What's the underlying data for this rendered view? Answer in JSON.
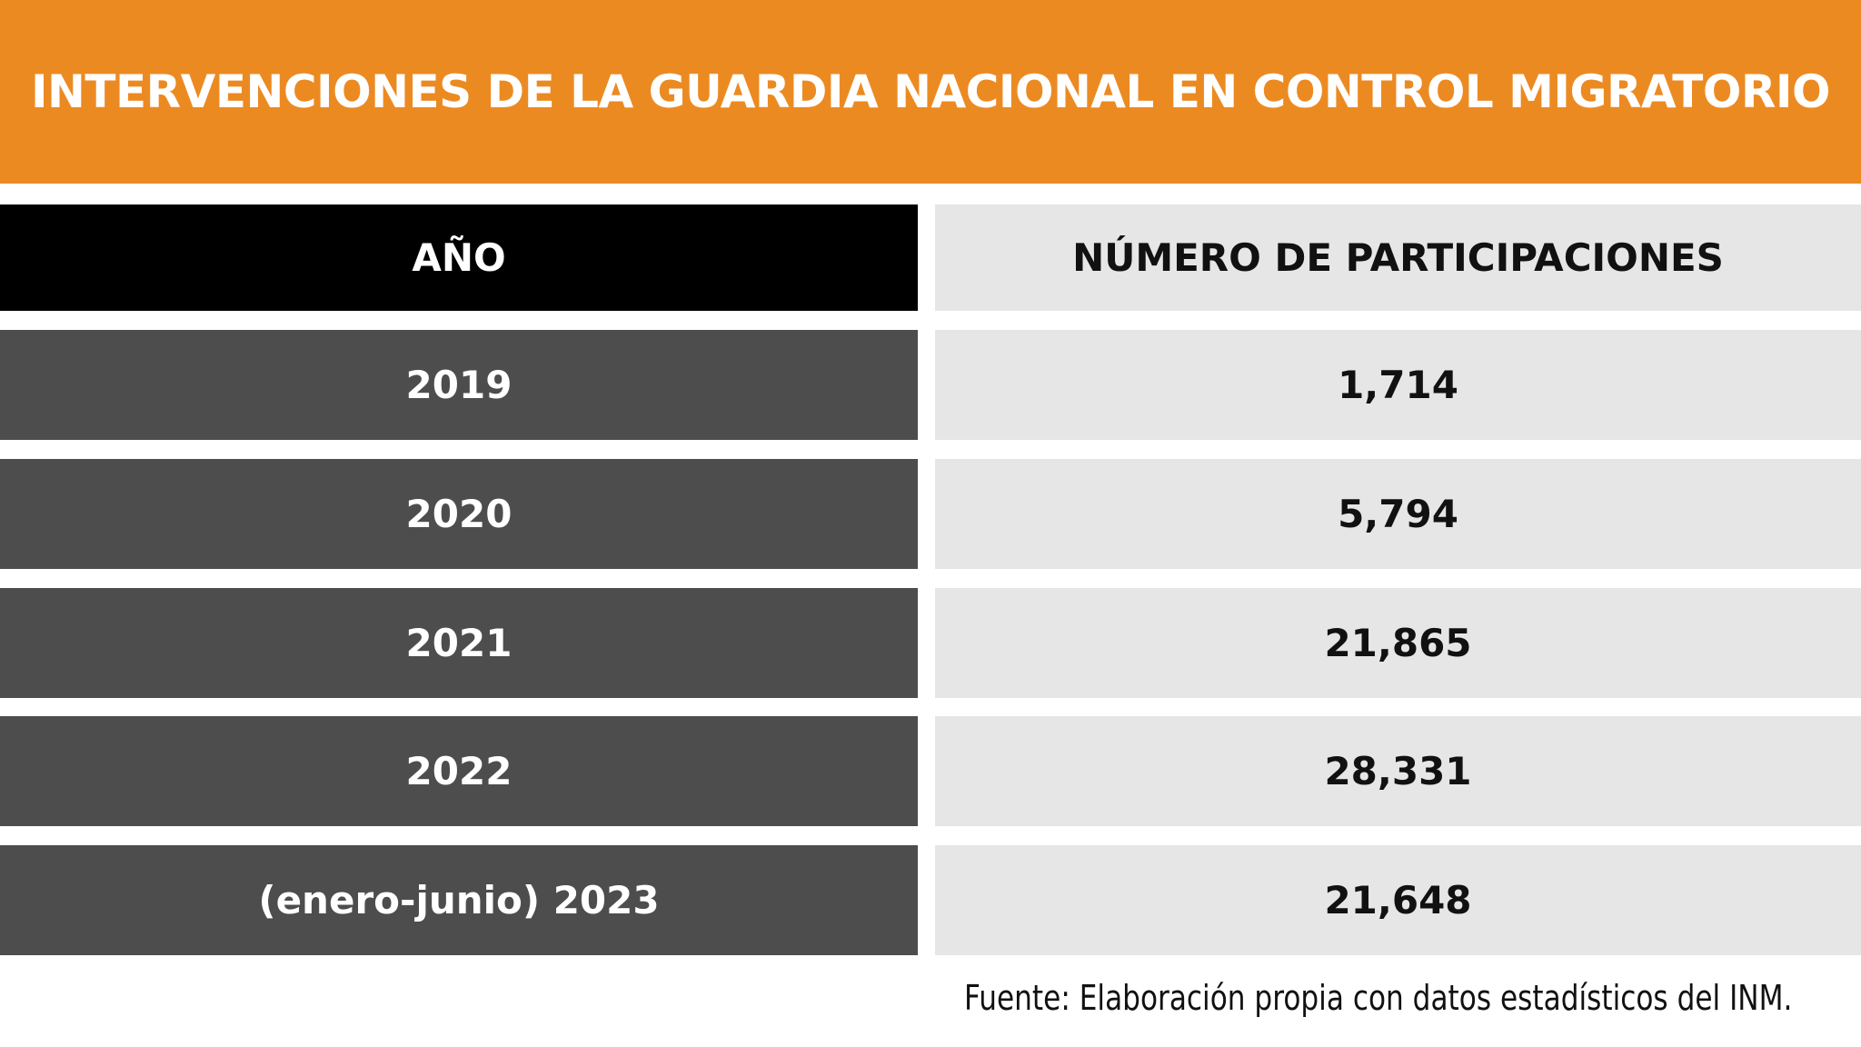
{
  "header": {
    "title": "INTERVENCIONES DE LA GUARDIA NACIONAL EN CONTROL MIGRATORIO"
  },
  "table": {
    "columns": [
      "AÑO",
      "NÚMERO DE PARTICIPACIONES"
    ],
    "rows": [
      [
        "2019",
        "1,714"
      ],
      [
        "2020",
        "5,794"
      ],
      [
        "2021",
        "21,865"
      ],
      [
        "2022",
        "28,331"
      ],
      [
        "(enero-junio) 2023",
        "21,648"
      ]
    ]
  },
  "source": "Fuente: Elaboración propia con datos estadísticos del INM."
}
